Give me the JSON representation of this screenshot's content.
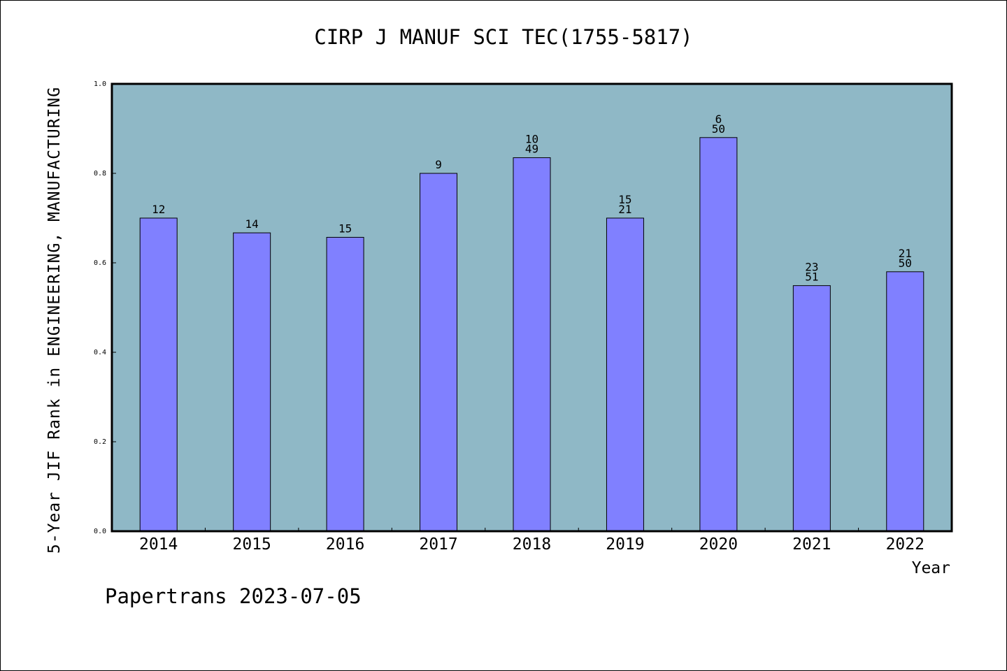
{
  "chart_data": {
    "type": "bar",
    "title": "CIRP J MANUF SCI TEC(1755-5817)",
    "xlabel": "Year",
    "ylabel": "5-Year JIF Rank in ENGINEERING, MANUFACTURING",
    "ylim": [
      0.0,
      1.0
    ],
    "yticks": [
      "0.0",
      "0.2",
      "0.4",
      "0.6",
      "0.8",
      "1.0"
    ],
    "categories": [
      "2014",
      "2015",
      "2016",
      "2017",
      "2018",
      "2019",
      "2020",
      "2021",
      "2022"
    ],
    "values": [
      0.7,
      0.667,
      0.657,
      0.8,
      0.835,
      0.7,
      0.88,
      0.549,
      0.58
    ],
    "bar_labels": [
      [
        "12"
      ],
      [
        "14"
      ],
      [
        "15"
      ],
      [
        "9"
      ],
      [
        "10",
        "49"
      ],
      [
        "15",
        "21"
      ],
      [
        "6",
        "50"
      ],
      [
        "23",
        "51"
      ],
      [
        "21",
        "50"
      ]
    ],
    "grid": false,
    "colors": {
      "plot_background": "#8fb8c6",
      "bar_fill": "#8080ff",
      "bar_stroke": "#000000"
    }
  },
  "footer": "Papertrans 2023-07-05"
}
